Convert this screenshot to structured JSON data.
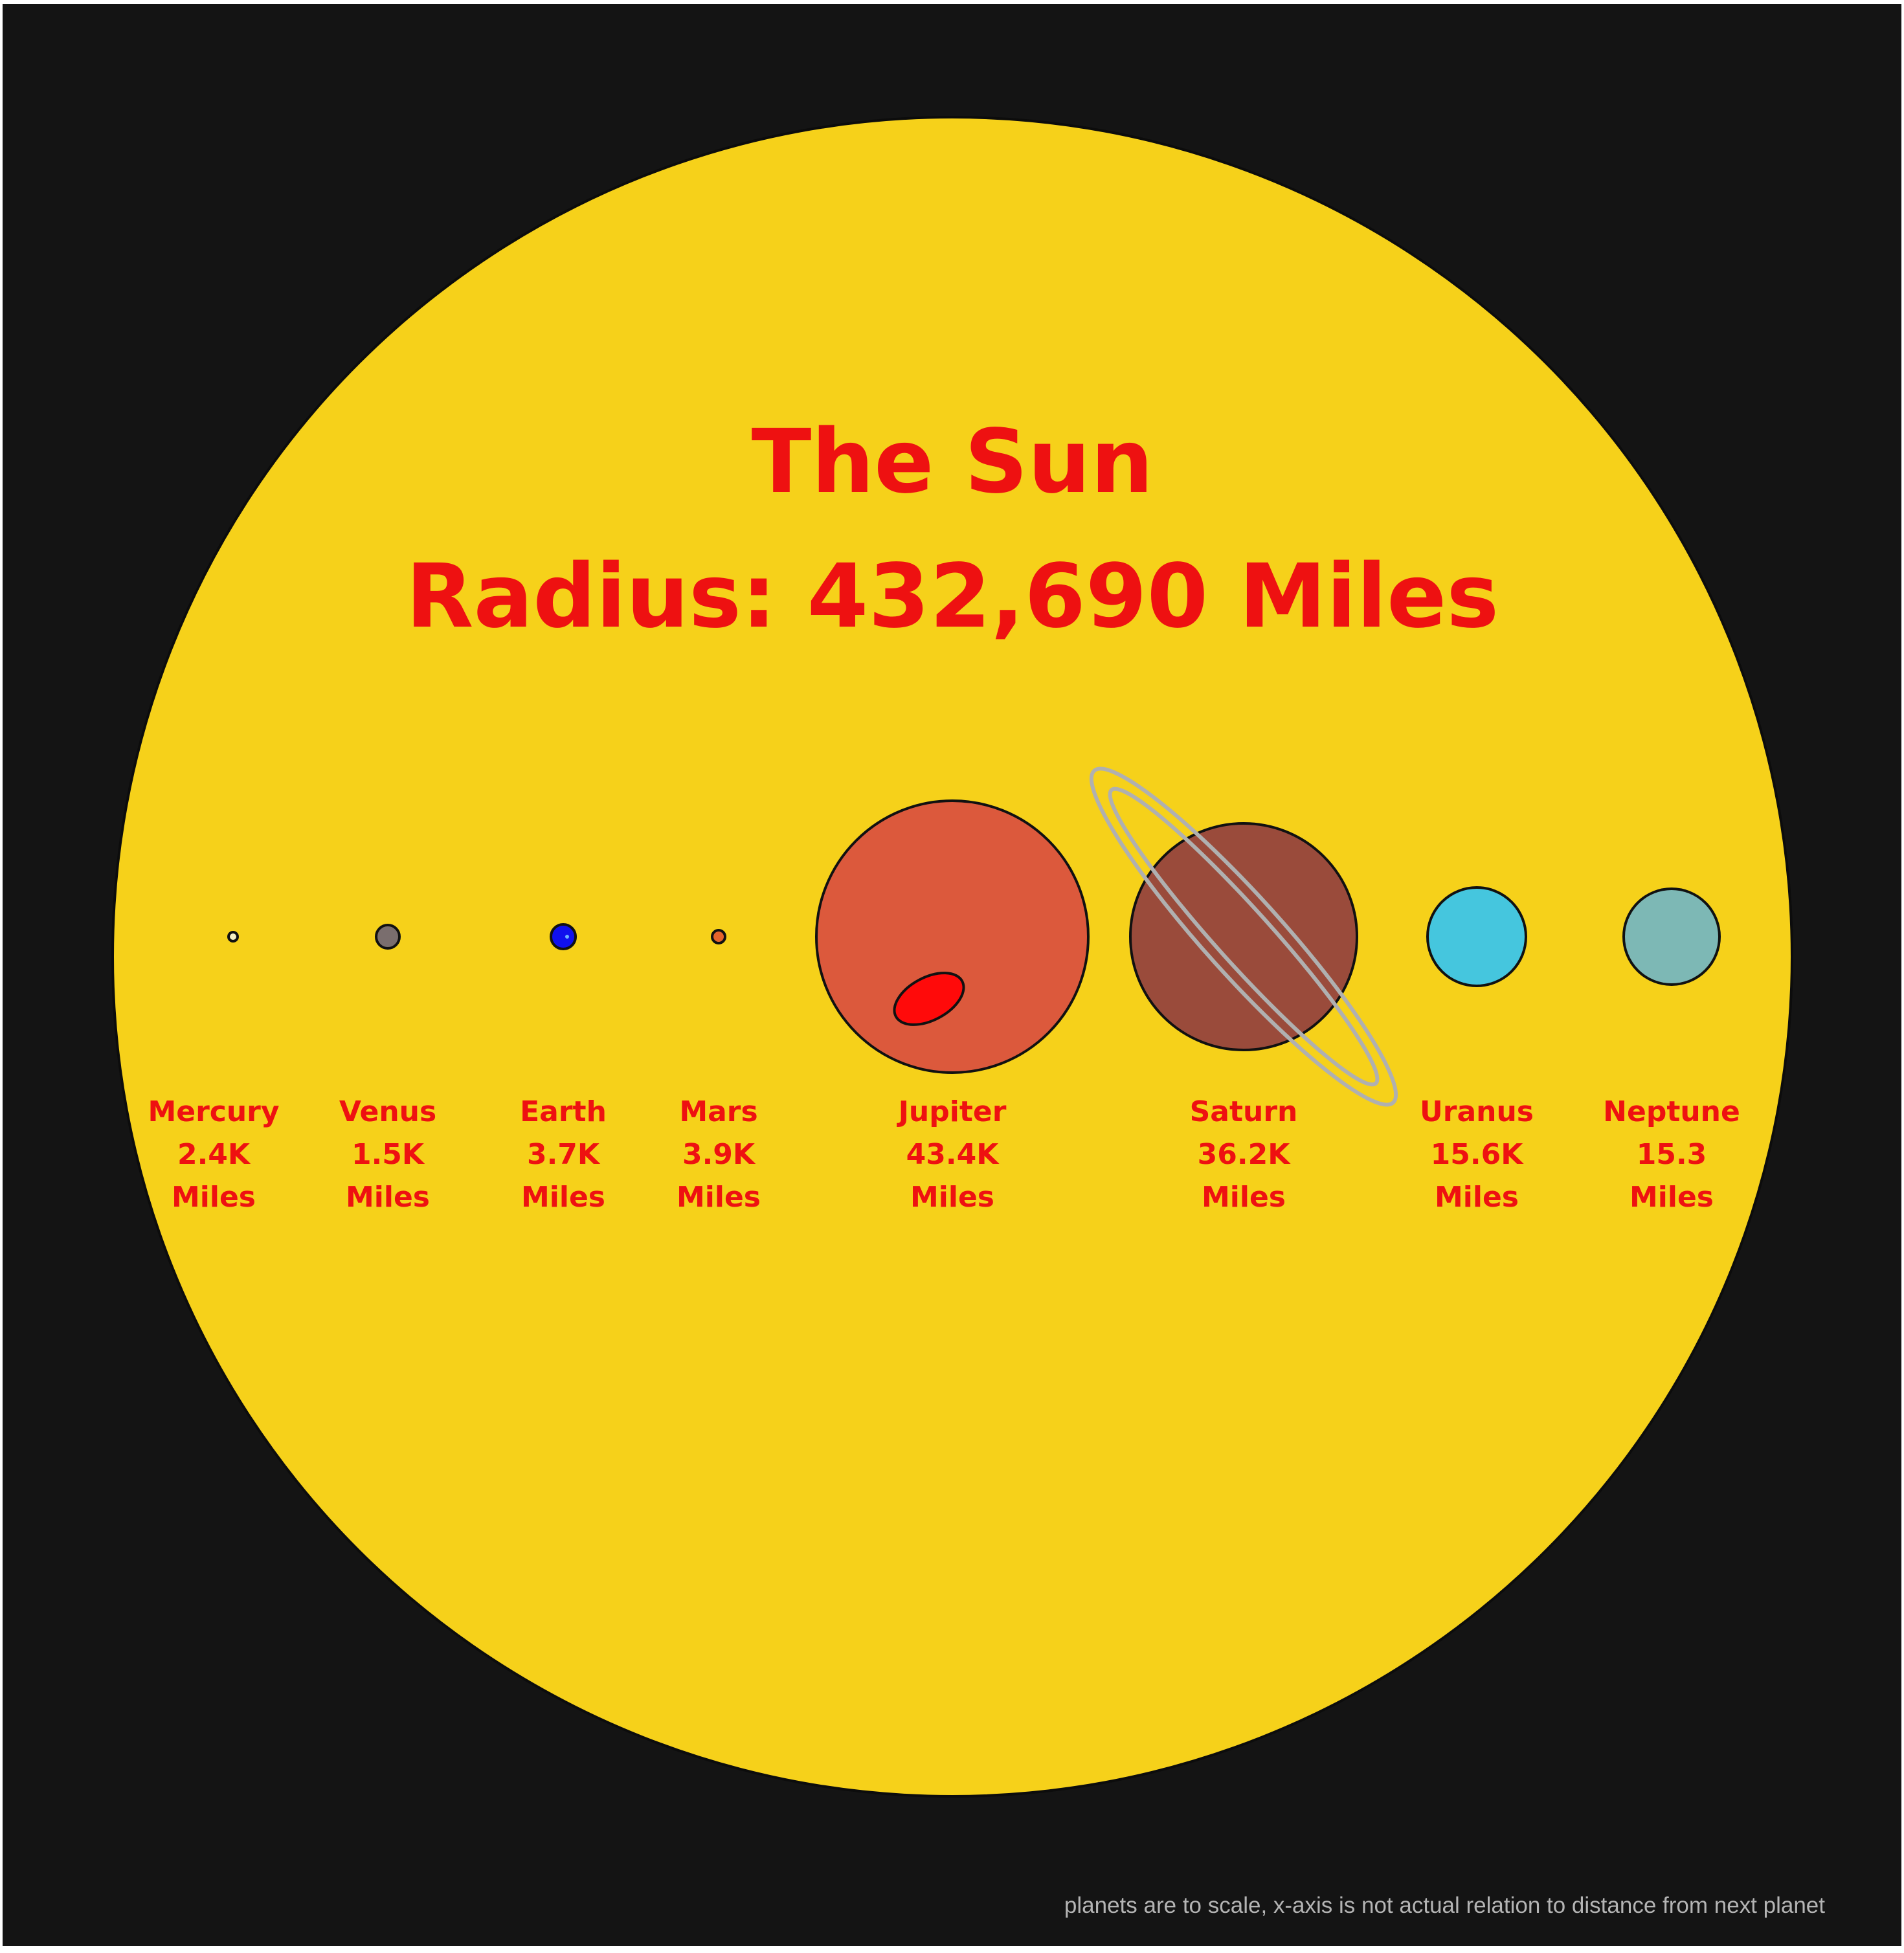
{
  "colors": {
    "page_background": "#141414",
    "sun_fill": "#f6d11a",
    "text_red": "#ee1111",
    "footnote_gray": "#b4b4b4",
    "outline": "#111111",
    "saturn_ring": "#b0b0b0"
  },
  "sun": {
    "title": "The Sun",
    "radius_text": "Radius: 432,690 Miles"
  },
  "planets": [
    {
      "name": "Mercury",
      "value": "2.4K",
      "unit": "Miles",
      "fill": "#f4efc4"
    },
    {
      "name": "Venus",
      "value": "1.5K",
      "unit": "Miles",
      "fill": "#7a6e6e"
    },
    {
      "name": "Earth",
      "value": "3.7K",
      "unit": "Miles",
      "fill": "#1010ee"
    },
    {
      "name": "Mars",
      "value": "3.9K",
      "unit": "Miles",
      "fill": "#e3642c"
    },
    {
      "name": "Jupiter",
      "value": "43.4K",
      "unit": "Miles",
      "fill": "#dc593c",
      "spot_fill": "#ff0a0a"
    },
    {
      "name": "Saturn",
      "value": "36.2K",
      "unit": "Miles",
      "fill": "#9a4b3b"
    },
    {
      "name": "Uranus",
      "value": "15.6K",
      "unit": "Miles",
      "fill": "#45c6de"
    },
    {
      "name": "Neptune",
      "value": "15.3",
      "unit": "Miles",
      "fill": "#7db8b5"
    }
  ],
  "footnote": "planets are to scale, x-axis is not actual relation to distance from next planet"
}
